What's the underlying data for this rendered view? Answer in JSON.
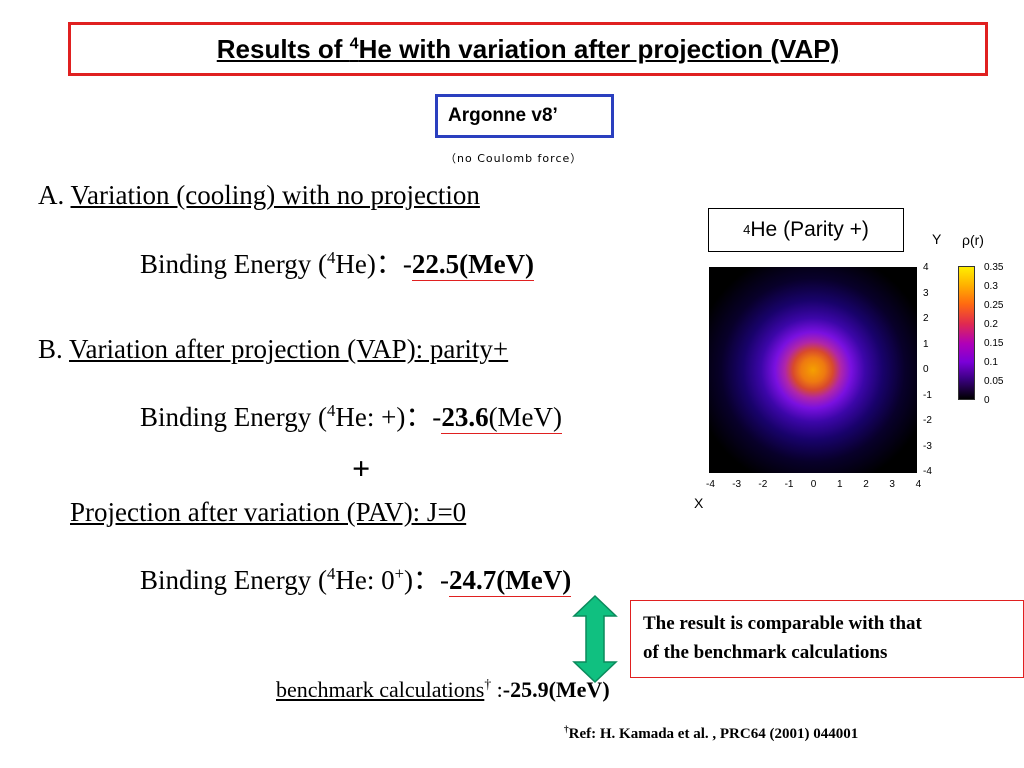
{
  "title": {
    "prefix": "Results of ",
    "sup": "4",
    "suffix": "He with variation after projection (VAP)"
  },
  "potential": {
    "name": "Argonne v8",
    "mark": "’",
    "note": "（no Coulomb force）"
  },
  "section_a": {
    "label": "A.",
    "heading": "Variation (cooling) with no projection",
    "be_prefix": "Binding Energy (",
    "be_sup": "4",
    "be_nucleus": "He)",
    "be_sep": "：-",
    "be_value": "22.5(MeV)"
  },
  "section_b": {
    "label": "B.",
    "heading": "Variation after projection (VAP): parity+",
    "be_prefix": "Binding Energy (",
    "be_sup": "4",
    "be_nucleus": "He: +)",
    "be_sep": "：-",
    "be_value_bold": "23.6",
    "be_value_unit": "(MeV)",
    "plus": "+",
    "pav_heading": "Projection after variation (PAV): J=0",
    "pav_be_prefix": "Binding Energy (",
    "pav_be_sup": "4",
    "pav_be_nucleus": "He: 0",
    "pav_be_sup2": "+",
    "pav_be_close": ")",
    "pav_be_sep": "：-",
    "pav_be_value": "24.7(MeV)"
  },
  "plot": {
    "label_sup": "4",
    "label": "He (Parity +)",
    "x_axis": "X",
    "y_axis": "Y",
    "colorbar_label": "ρ(r)",
    "x_ticks": [
      "-4",
      "-3",
      "-2",
      "-1",
      "0",
      "1",
      "2",
      "3",
      "4"
    ],
    "y_ticks": [
      "4",
      "3",
      "2",
      "1",
      "0",
      "-1",
      "-2",
      "-3",
      "-4"
    ],
    "colorbar_ticks": [
      "0.35",
      "0.3",
      "0.25",
      "0.2",
      "0.15",
      "0.1",
      "0.05",
      "0"
    ]
  },
  "comparison": {
    "line1": "The result is comparable with that",
    "line2": "of the benchmark calculations"
  },
  "benchmark": {
    "label": "benchmark calculations",
    "dagger": "†",
    "sep": " :",
    "value": "-25.9(MeV)"
  },
  "reference": {
    "dagger": "†",
    "text": "Ref: H. Kamada et al. , PRC64  (2001)  044001"
  },
  "colors": {
    "title_border": "#e02020",
    "potential_border": "#2a3fbf",
    "arrow_fill": "#10c080",
    "accent_underline": "#e02020"
  }
}
